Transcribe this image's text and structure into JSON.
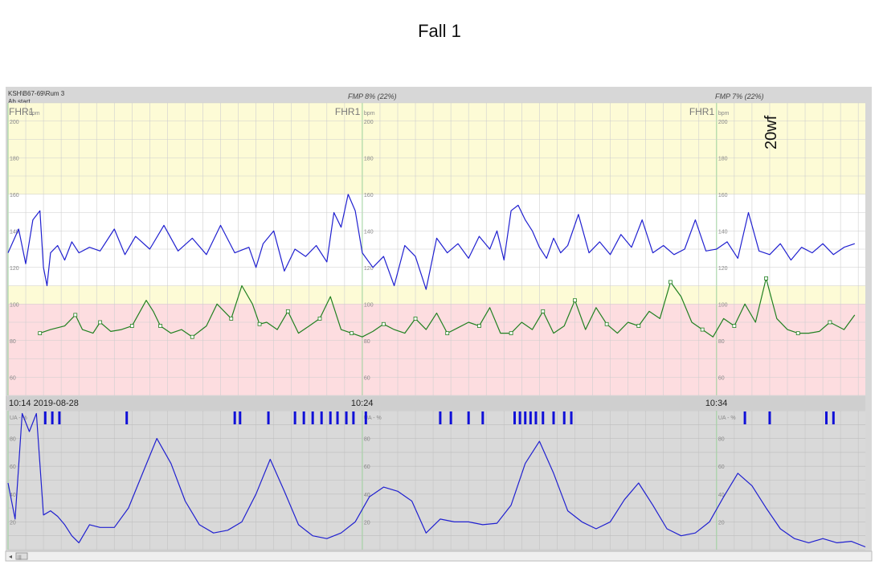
{
  "page": {
    "title": "Fall 1"
  },
  "header": {
    "location": "KSH\\B67-69\\Rum 3",
    "marker": "Ab start"
  },
  "fmp": [
    {
      "text": "FMP 8% (22%)"
    },
    {
      "text": "FMP 7% (22%)"
    }
  ],
  "annotation": "20wf",
  "scrollbar": {
    "left_arrow": "◂",
    "thumb": "|||"
  },
  "chart_data": [
    {
      "type": "line",
      "panel": "fetal-heart-rate",
      "title": "FHR1",
      "unit": "bpm",
      "ylim": [
        50,
        210
      ],
      "y_ticks": [
        {
          "v": 200,
          "t": "200"
        },
        {
          "v": 180,
          "t": "180"
        },
        {
          "v": 160,
          "t": "160"
        },
        {
          "v": 140,
          "t": "140"
        },
        {
          "v": 120,
          "t": "120"
        },
        {
          "v": 100,
          "t": "100"
        },
        {
          "v": 80,
          "t": "80"
        },
        {
          "v": 60,
          "t": "60"
        }
      ],
      "bands": [
        {
          "from": 160,
          "to": 210,
          "color": "#fdfbd6"
        },
        {
          "from": 110,
          "to": 160,
          "color": "#ffffff"
        },
        {
          "from": 100,
          "to": 110,
          "color": "#fdfbd6"
        },
        {
          "from": 50,
          "to": 100,
          "color": "#fddde0"
        }
      ],
      "xlim": [
        0,
        24.2
      ],
      "x_time_labels": [
        {
          "x": 0,
          "t": "10:14 2019-08-28"
        },
        {
          "x": 10,
          "t": "10:24"
        },
        {
          "x": 20,
          "t": "10:34"
        }
      ],
      "series": [
        {
          "color": "#2020d0",
          "x": [
            0,
            0.3,
            0.5,
            0.7,
            0.9,
            1.0,
            1.1,
            1.2,
            1.4,
            1.6,
            1.8,
            2.0,
            2.3,
            2.6,
            3.0,
            3.3,
            3.6,
            4.0,
            4.4,
            4.8,
            5.2,
            5.6,
            6.0,
            6.4,
            6.8,
            7.0,
            7.2,
            7.5,
            7.8,
            8.1,
            8.4,
            8.7,
            9.0,
            9.2,
            9.4,
            9.6,
            9.8,
            10.0,
            10.3,
            10.6,
            10.9,
            11.2,
            11.5,
            11.8,
            12.1,
            12.4,
            12.7,
            13.0,
            13.3,
            13.6,
            13.8,
            14.0,
            14.2,
            14.4,
            14.6,
            14.8,
            15.0,
            15.2,
            15.4,
            15.6,
            15.8,
            16.1,
            16.4,
            16.7,
            17.0,
            17.3,
            17.6,
            17.9,
            18.2,
            18.5,
            18.8,
            19.1,
            19.4,
            19.7,
            20.0,
            20.3,
            20.6,
            20.9,
            21.2,
            21.5,
            21.8,
            22.1,
            22.4,
            22.7,
            23.0,
            23.3,
            23.6,
            23.9
          ],
          "values": [
            128,
            141,
            122,
            146,
            151,
            120,
            110,
            128,
            132,
            124,
            134,
            128,
            131,
            129,
            141,
            127,
            137,
            130,
            143,
            129,
            136,
            127,
            143,
            128,
            131,
            120,
            133,
            140,
            118,
            130,
            126,
            132,
            123,
            150,
            142,
            160,
            151,
            128,
            120,
            126,
            110,
            132,
            126,
            108,
            136,
            128,
            133,
            125,
            137,
            130,
            140,
            124,
            151,
            154,
            146,
            140,
            131,
            125,
            136,
            128,
            132,
            149,
            128,
            134,
            127,
            138,
            131,
            146,
            128,
            132,
            127,
            130,
            146,
            129,
            130,
            134,
            125,
            150,
            129,
            127,
            133,
            124,
            131,
            128,
            133,
            127,
            131,
            133
          ]
        },
        {
          "color": "#208020",
          "x": [
            0.9,
            1.2,
            1.6,
            1.9,
            2.1,
            2.4,
            2.6,
            2.9,
            3.2,
            3.5,
            3.9,
            4.1,
            4.3,
            4.6,
            4.9,
            5.2,
            5.6,
            5.9,
            6.3,
            6.6,
            6.9,
            7.1,
            7.3,
            7.6,
            7.9,
            8.2,
            8.5,
            8.8,
            9.1,
            9.4,
            9.7,
            10.0,
            10.3,
            10.6,
            10.9,
            11.2,
            11.5,
            11.8,
            12.1,
            12.4,
            12.7,
            13.0,
            13.3,
            13.6,
            13.9,
            14.2,
            14.5,
            14.8,
            15.1,
            15.4,
            15.7,
            16.0,
            16.3,
            16.6,
            16.9,
            17.2,
            17.5,
            17.8,
            18.1,
            18.4,
            18.7,
            19.0,
            19.3,
            19.6,
            19.9,
            20.2,
            20.5,
            20.8,
            21.1,
            21.4,
            21.7,
            22.0,
            22.3,
            22.6,
            22.9,
            23.2,
            23.6,
            23.9
          ],
          "values": [
            84,
            86,
            88,
            94,
            86,
            84,
            90,
            85,
            86,
            88,
            102,
            96,
            88,
            84,
            86,
            82,
            88,
            100,
            92,
            110,
            100,
            89,
            90,
            86,
            96,
            84,
            88,
            92,
            104,
            86,
            84,
            82,
            85,
            89,
            86,
            84,
            92,
            86,
            95,
            84,
            87,
            90,
            88,
            98,
            84,
            84,
            90,
            86,
            96,
            84,
            88,
            102,
            86,
            98,
            89,
            84,
            90,
            88,
            96,
            92,
            112,
            104,
            90,
            86,
            82,
            92,
            88,
            100,
            90,
            114,
            92,
            86,
            84,
            84,
            85,
            90,
            86,
            94
          ]
        }
      ]
    },
    {
      "type": "line",
      "panel": "uterine-activity",
      "title": "UA - %",
      "ylim": [
        0,
        100
      ],
      "y_ticks": [
        {
          "v": 80,
          "t": "80"
        },
        {
          "v": 60,
          "t": "60"
        },
        {
          "v": 40,
          "t": "40"
        },
        {
          "v": 20,
          "t": "20"
        }
      ],
      "xlim": [
        0,
        24.2
      ],
      "series": [
        {
          "color": "#2020d0",
          "x": [
            0,
            0.2,
            0.4,
            0.6,
            0.8,
            1.0,
            1.2,
            1.4,
            1.6,
            1.8,
            2.0,
            2.3,
            2.6,
            3.0,
            3.4,
            3.8,
            4.2,
            4.6,
            5.0,
            5.4,
            5.8,
            6.2,
            6.6,
            7.0,
            7.4,
            7.8,
            8.2,
            8.6,
            9.0,
            9.4,
            9.8,
            10.2,
            10.6,
            11.0,
            11.4,
            11.8,
            12.2,
            12.6,
            13.0,
            13.4,
            13.8,
            14.2,
            14.6,
            15.0,
            15.4,
            15.8,
            16.2,
            16.6,
            17.0,
            17.4,
            17.8,
            18.2,
            18.6,
            19.0,
            19.4,
            19.8,
            20.2,
            20.6,
            21.0,
            21.4,
            21.8,
            22.2,
            22.6,
            23.0,
            23.4,
            23.8,
            24.2
          ],
          "values": [
            48,
            22,
            98,
            85,
            98,
            25,
            28,
            24,
            18,
            10,
            5,
            18,
            16,
            16,
            30,
            55,
            80,
            62,
            35,
            18,
            12,
            14,
            20,
            40,
            65,
            42,
            18,
            10,
            8,
            12,
            20,
            38,
            45,
            42,
            35,
            12,
            22,
            20,
            20,
            18,
            19,
            32,
            62,
            78,
            55,
            28,
            20,
            15,
            20,
            36,
            48,
            32,
            15,
            10,
            12,
            20,
            38,
            55,
            46,
            30,
            15,
            8,
            5,
            8,
            5,
            6,
            2
          ]
        }
      ],
      "event_marks": [
        1.05,
        1.25,
        1.45,
        3.35,
        6.4,
        6.55,
        7.35,
        8.1,
        8.35,
        8.6,
        8.85,
        9.1,
        9.3,
        9.55,
        9.75,
        10.1,
        12.2,
        12.5,
        13.0,
        13.4,
        14.3,
        14.45,
        14.6,
        14.75,
        14.9,
        15.1,
        15.4,
        15.7,
        15.9,
        20.8,
        21.5,
        23.1,
        23.3
      ]
    }
  ]
}
